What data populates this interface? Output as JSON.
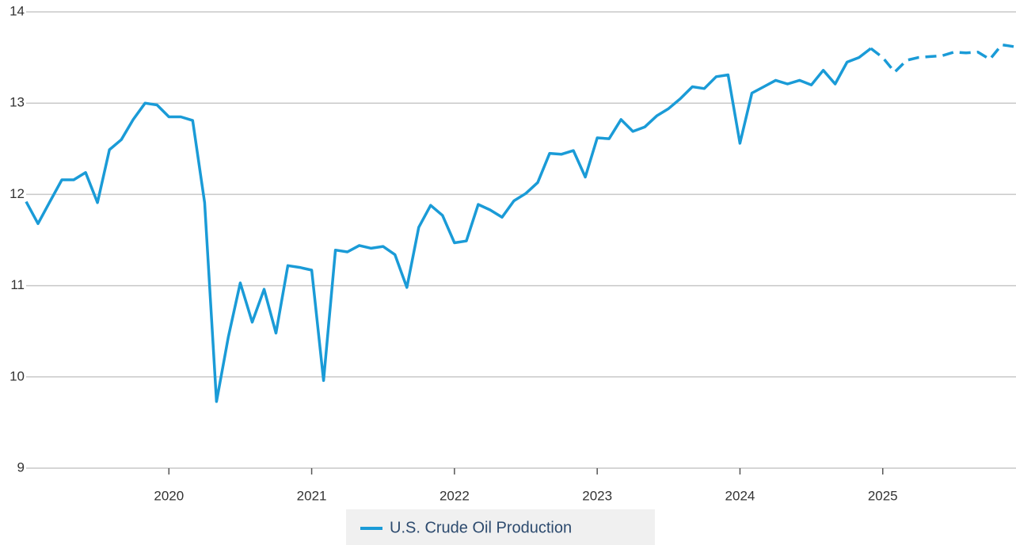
{
  "chart_data": {
    "type": "line",
    "x": [
      "2019-01",
      "2019-02",
      "2019-03",
      "2019-04",
      "2019-05",
      "2019-06",
      "2019-07",
      "2019-08",
      "2019-09",
      "2019-10",
      "2019-11",
      "2019-12",
      "2020-01",
      "2020-02",
      "2020-03",
      "2020-04",
      "2020-05",
      "2020-06",
      "2020-07",
      "2020-08",
      "2020-09",
      "2020-10",
      "2020-11",
      "2020-12",
      "2021-01",
      "2021-02",
      "2021-03",
      "2021-04",
      "2021-05",
      "2021-06",
      "2021-07",
      "2021-08",
      "2021-09",
      "2021-10",
      "2021-11",
      "2021-12",
      "2022-01",
      "2022-02",
      "2022-03",
      "2022-04",
      "2022-05",
      "2022-06",
      "2022-07",
      "2022-08",
      "2022-09",
      "2022-10",
      "2022-11",
      "2022-12",
      "2023-01",
      "2023-02",
      "2023-03",
      "2023-04",
      "2023-05",
      "2023-06",
      "2023-07",
      "2023-08",
      "2023-09",
      "2023-10",
      "2023-11",
      "2023-12",
      "2024-01",
      "2024-02",
      "2024-03",
      "2024-04",
      "2024-05",
      "2024-06",
      "2024-07",
      "2024-08",
      "2024-09",
      "2024-10",
      "2024-11",
      "2024-12",
      "2025-01",
      "2025-02",
      "2025-03",
      "2025-04",
      "2025-05",
      "2025-06",
      "2025-07",
      "2025-08",
      "2025-09",
      "2025-10",
      "2025-11",
      "2025-12"
    ],
    "series": [
      {
        "name": "U.S. Crude Oil Production",
        "color": "#1a9bd7",
        "dashed": false,
        "values": [
          11.92,
          11.68,
          11.92,
          12.16,
          12.16,
          12.24,
          11.91,
          12.49,
          12.6,
          12.82,
          13.0,
          12.98,
          12.85,
          12.85,
          12.81,
          11.91,
          9.73,
          10.44,
          11.03,
          10.6,
          10.96,
          10.48,
          11.22,
          11.2,
          11.17,
          9.96,
          11.39,
          11.37,
          11.44,
          11.41,
          11.43,
          11.34,
          10.98,
          11.64,
          11.88,
          11.77,
          11.47,
          11.49,
          11.89,
          11.83,
          11.75,
          11.93,
          12.01,
          12.13,
          12.45,
          12.44,
          12.48,
          12.19,
          12.62,
          12.61,
          12.82,
          12.69,
          12.74,
          12.86,
          12.94,
          13.05,
          13.18,
          13.16,
          13.29,
          13.31,
          12.56,
          13.11,
          13.18,
          13.25,
          13.21,
          13.25,
          13.2,
          13.36,
          13.21,
          13.45,
          13.5,
          13.6,
          null,
          null,
          null,
          null,
          null,
          null,
          null,
          null,
          null,
          null,
          null,
          null
        ]
      },
      {
        "color": "#1a9bd7",
        "dashed": true,
        "values": [
          null,
          null,
          null,
          null,
          null,
          null,
          null,
          null,
          null,
          null,
          null,
          null,
          null,
          null,
          null,
          null,
          null,
          null,
          null,
          null,
          null,
          null,
          null,
          null,
          null,
          null,
          null,
          null,
          null,
          null,
          null,
          null,
          null,
          null,
          null,
          null,
          null,
          null,
          null,
          null,
          null,
          null,
          null,
          null,
          null,
          null,
          null,
          null,
          null,
          null,
          null,
          null,
          null,
          null,
          null,
          null,
          null,
          null,
          null,
          null,
          null,
          null,
          null,
          null,
          null,
          null,
          null,
          null,
          null,
          null,
          null,
          13.6,
          13.5,
          13.34,
          13.47,
          13.5,
          13.51,
          13.52,
          13.56,
          13.55,
          13.56,
          13.48,
          13.64,
          13.62
        ]
      }
    ],
    "xlim": [
      "2019-01",
      "2025-12"
    ],
    "xticks": [
      2020,
      2021,
      2022,
      2023,
      2024,
      2025
    ],
    "ylim": [
      9,
      14
    ],
    "yticks": [
      9,
      10,
      11,
      12,
      13,
      14
    ],
    "grid": true,
    "legend": "bottom"
  }
}
